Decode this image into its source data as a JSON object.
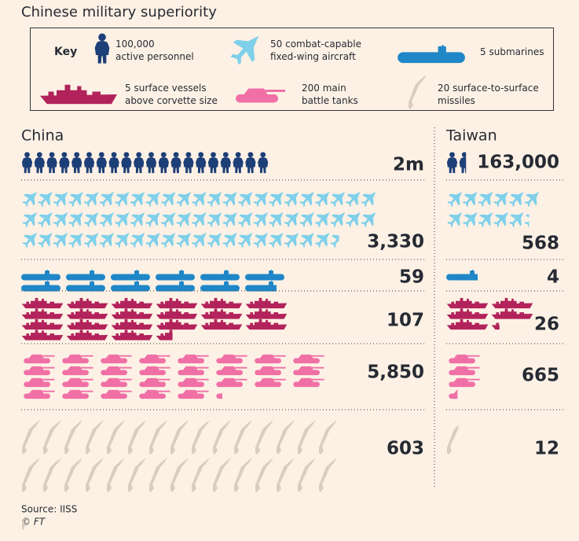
{
  "chart_data": {
    "type": "pictogram",
    "title": "Chinese military superiority",
    "key_title": "Key",
    "key": [
      {
        "unit": {
          "value": 100000,
          "label": "100,000"
        },
        "text": "active personnel",
        "color": "#1d3f77"
      },
      {
        "unit": 50,
        "text": "combat-capable fixed-wing aircraft",
        "color": "#7fd0ea"
      },
      {
        "unit": 5,
        "text": "submarines",
        "color": "#1f87c7"
      },
      {
        "unit": 5,
        "text": "surface vessels above corvette size",
        "color": "#b2225b"
      },
      {
        "unit": 200,
        "text": "main battle tanks",
        "color": "#f070a6"
      },
      {
        "unit": 20,
        "text": "surface-to-surface missiles",
        "color": "#dacdbf"
      }
    ],
    "series": [
      {
        "name": "China",
        "values": [
          2000000,
          3330,
          59,
          107,
          5850,
          603
        ],
        "value_labels": [
          "2m",
          "3,330",
          "59",
          "107",
          "5,850",
          "603"
        ]
      },
      {
        "name": "Taiwan",
        "values": [
          163000,
          568,
          4,
          26,
          665,
          12
        ],
        "value_labels": [
          "163,000",
          "568",
          "4",
          "26",
          "665",
          "12"
        ]
      }
    ],
    "source": "Source: IISS",
    "credit": "© FT"
  }
}
